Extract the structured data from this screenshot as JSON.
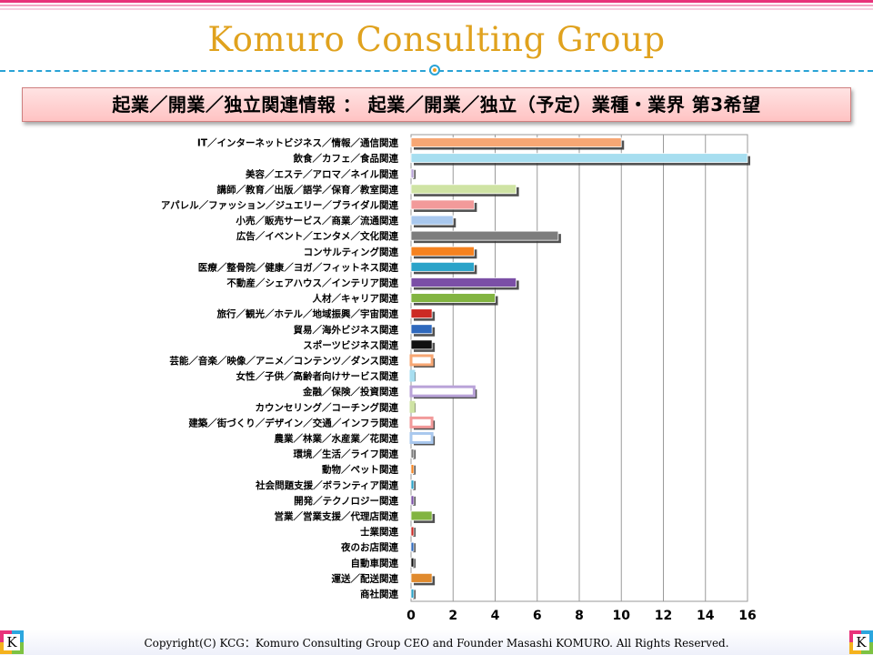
{
  "header": {
    "brand": "Komuro Consulting Group",
    "title": "起業／開業／独立関連情報 ： 起業／開業／独立（予定）業種・業界 第3希望"
  },
  "footer": {
    "copyright": "Copyright(C) KCG：Komuro Consulting Group CEO and Founder Masashi KOMURO. All Rights Reserved.",
    "logo_letter": "K"
  },
  "chart_data": {
    "type": "bar",
    "orientation": "horizontal",
    "title": "",
    "xlabel": "",
    "ylabel": "",
    "xlim": [
      0,
      16
    ],
    "xticks": [
      0,
      2,
      4,
      6,
      8,
      10,
      12,
      14,
      16
    ],
    "grid": "vertical",
    "legend": "none",
    "categories": [
      "IT／インターネットビジネス／情報／通信関連",
      "飲食／カフェ／食品関連",
      "美容／エステ／アロマ／ネイル関連",
      "講師／教育／出版／語学／保育／教室関連",
      "アパレル／ファッション／ジュエリー／ブライダル関連",
      "小売／販売サービス／商業／流通関連",
      "広告／イベント／エンタメ／文化関連",
      "コンサルティング関連",
      "医療／整骨院／健康／ヨガ／フィットネス関連",
      "不動産／シェアハウス／インテリア関連",
      "人材／キャリア関連",
      "旅行／観光／ホテル／地域振興／宇宙関連",
      "貿易／海外ビジネス関連",
      "スポーツビジネス関連",
      "芸能／音楽／映像／アニメ／コンテンツ／ダンス関連",
      "女性／子供／高齢者向けサービス関連",
      "金融／保険／投資関連",
      "カウンセリング／コーチング関連",
      "建築／街づくり／デザイン／交通／インフラ関連",
      "農業／林業／水産業／花関連",
      "環境／生活／ライフ関連",
      "動物／ペット関連",
      "社会問題支援／ボランティア関連",
      "開発／テクノロジー関連",
      "営業／営業支援／代理店関連",
      "士業関連",
      "夜のお店関連",
      "自動車関連",
      "運送／配送関連",
      "商社関連"
    ],
    "values": [
      10,
      16,
      0,
      5,
      3,
      2,
      7,
      3,
      3,
      5,
      4,
      1,
      1,
      1,
      1,
      0,
      3,
      0,
      1,
      1,
      0,
      0,
      0,
      0,
      1,
      0,
      0,
      0,
      1,
      0
    ],
    "colors": [
      "#f7a774",
      "#a7def0",
      "#b9a3d8",
      "#cfe3a4",
      "#f29a9a",
      "#a9c8ee",
      "#7d7d7d",
      "#f5821f",
      "#2ba3c9",
      "#7b4fa6",
      "#82b441",
      "#cc2a24",
      "#2f69bd",
      "#111111",
      "#f7a774",
      "#a7def0",
      "#b9a3d8",
      "#cfe3a4",
      "#f29a9a",
      "#a9c8ee",
      "#7d7d7d",
      "#f5821f",
      "#2ba3c9",
      "#7b4fa6",
      "#82b441",
      "#cc2a24",
      "#2f69bd",
      "#111111",
      "#e08a2e",
      "#2ba3c9"
    ],
    "hollow": [
      false,
      false,
      false,
      false,
      false,
      false,
      false,
      false,
      false,
      false,
      false,
      false,
      false,
      false,
      true,
      true,
      true,
      true,
      true,
      true,
      false,
      false,
      false,
      false,
      false,
      false,
      false,
      false,
      false,
      false
    ]
  }
}
